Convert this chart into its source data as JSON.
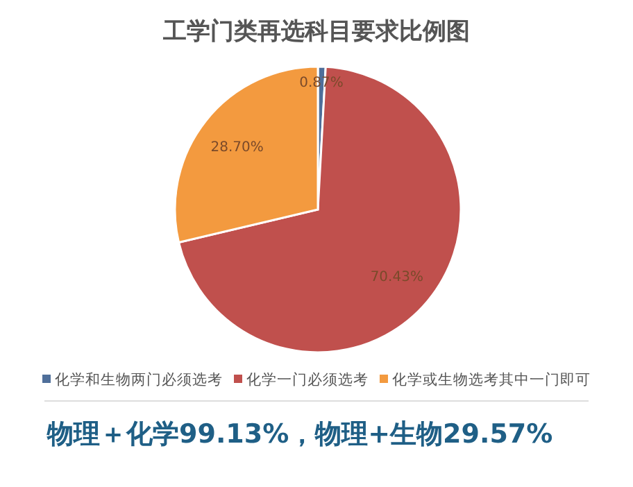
{
  "chart_data": {
    "type": "pie",
    "title": "工学门类再选科目要求比例图",
    "categories": [
      "化学和生物两门必须选考",
      "化学一门必须选考",
      "化学或生物选考其中一门即可"
    ],
    "values": [
      0.87,
      70.43,
      28.7
    ],
    "colors": [
      "#4f6f9a",
      "#c0504d",
      "#f39a3f"
    ],
    "value_labels": [
      "0.87%",
      "70.43%",
      "28.70%"
    ],
    "legend": "bottom",
    "annotations": [
      "物理＋化学99.13%，物理+生物29.57%"
    ]
  }
}
